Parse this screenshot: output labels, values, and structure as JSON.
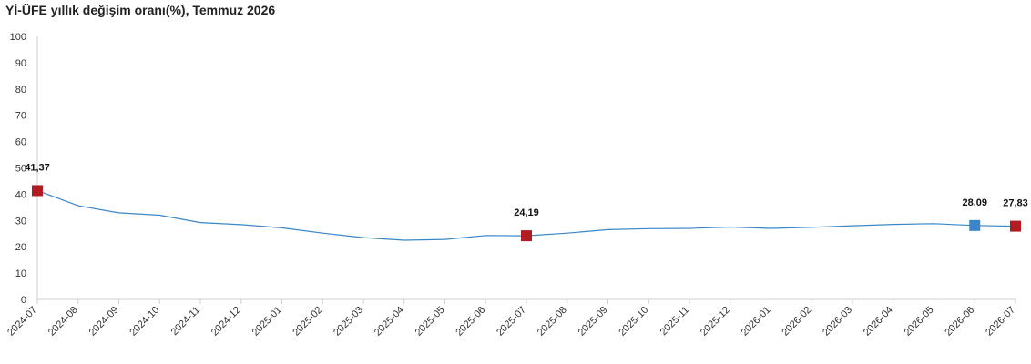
{
  "chart_data": {
    "type": "line",
    "title": "Yİ-ÜFE yıllık değişim oranı(%), Temmuz 2026",
    "xlabel": "",
    "ylabel": "",
    "ylim": [
      0,
      100
    ],
    "yticks": [
      0,
      10,
      20,
      30,
      40,
      50,
      60,
      70,
      80,
      90,
      100
    ],
    "grid": false,
    "legend": "none",
    "categories": [
      "2024-07",
      "2024-08",
      "2024-09",
      "2024-10",
      "2024-11",
      "2024-12",
      "2025-01",
      "2025-02",
      "2025-03",
      "2025-04",
      "2025-05",
      "2025-06",
      "2025-07",
      "2025-08",
      "2025-09",
      "2025-10",
      "2025-11",
      "2025-12",
      "2026-01",
      "2026-02",
      "2026-03",
      "2026-04",
      "2026-05",
      "2026-06",
      "2026-07"
    ],
    "series": [
      {
        "values": [
          41.37,
          35.6,
          32.9,
          32.0,
          29.2,
          28.4,
          27.2,
          25.2,
          23.5,
          22.5,
          22.8,
          24.3,
          24.19,
          25.2,
          26.5,
          26.9,
          27.0,
          27.5,
          27.0,
          27.4,
          28.0,
          28.5,
          28.8,
          28.09,
          27.83
        ],
        "color": "#3a86c8"
      }
    ],
    "highlights": [
      {
        "index": 0,
        "label": "41,37",
        "color": "#b01c22"
      },
      {
        "index": 12,
        "label": "24,19",
        "color": "#b01c22"
      },
      {
        "index": 23,
        "label": "28,09",
        "color": "#3a86c8"
      },
      {
        "index": 24,
        "label": "27,83",
        "color": "#b01c22"
      }
    ]
  }
}
